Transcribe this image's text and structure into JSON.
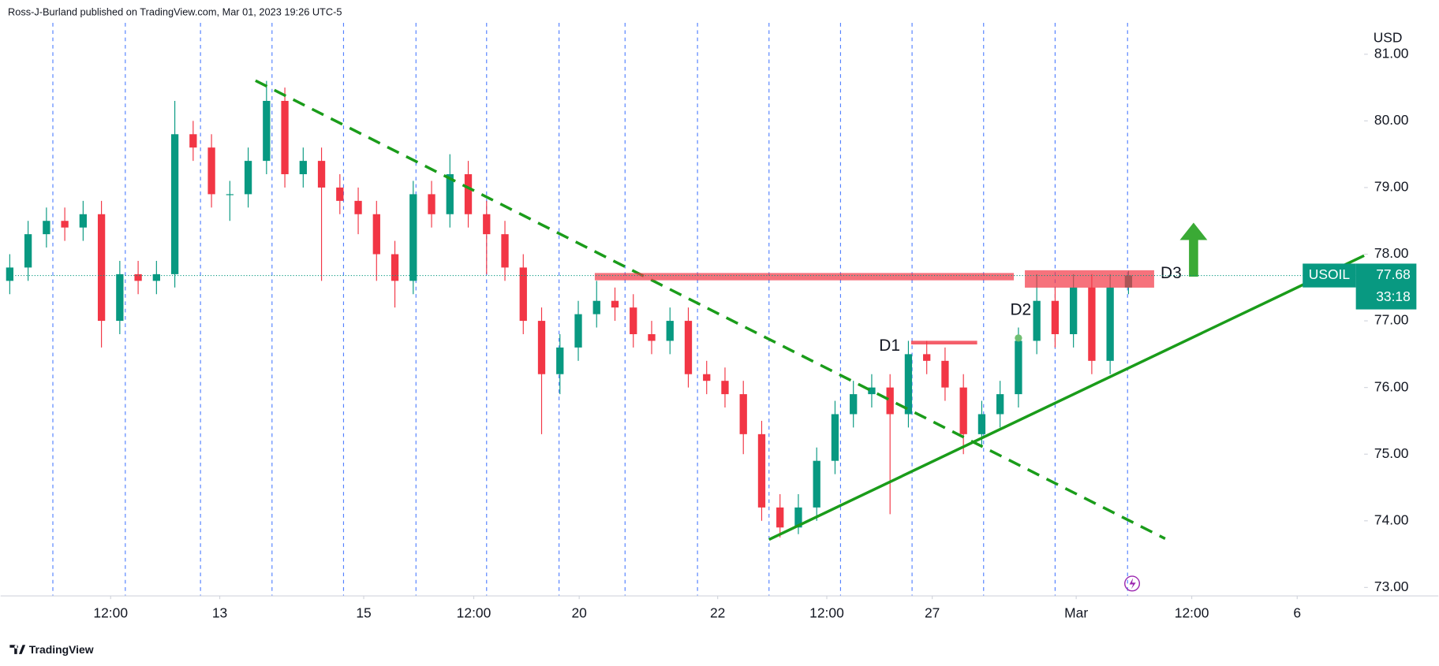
{
  "chart_data": {
    "type": "candlestick",
    "header": "Ross-J-Burland published on TradingView.com, Mar 01, 2023 19:26 UTC-5",
    "currency": "USD",
    "brand": "TradingView",
    "symbol": "USOIL",
    "last_price": 77.68,
    "countdown": "33:18",
    "annotations": [
      "D1",
      "D2",
      "D3"
    ],
    "up_color": "#089981",
    "down_color": "#f23645",
    "x": [
      0,
      5,
      10,
      15,
      20,
      25,
      30,
      35,
      40,
      45,
      50,
      55,
      60,
      65,
      70,
      75,
      80,
      85,
      90,
      95,
      100,
      105,
      110,
      115,
      120,
      125,
      130,
      135,
      140,
      145,
      150,
      155,
      160,
      165,
      170,
      175,
      180,
      185,
      190,
      195,
      200,
      205,
      210,
      215,
      220,
      225,
      230,
      235,
      240,
      245,
      250,
      255,
      260,
      265,
      270,
      275,
      280,
      285,
      290,
      295,
      300,
      305
    ],
    "open": [
      77.6,
      77.8,
      78.3,
      78.5,
      78.4,
      78.6,
      77.0,
      77.7,
      77.6,
      77.7,
      79.8,
      79.6,
      78.9,
      78.9,
      79.4,
      80.3,
      79.2,
      79.4,
      79.0,
      78.8,
      78.6,
      78.0,
      77.6,
      78.9,
      78.6,
      79.2,
      78.6,
      78.3,
      77.8,
      77.0,
      76.2,
      76.6,
      77.1,
      77.3,
      77.2,
      76.8,
      76.7,
      77.0,
      76.2,
      76.1,
      75.9,
      75.3,
      74.2,
      73.9,
      74.2,
      74.9,
      75.6,
      75.9,
      76.0,
      75.6,
      76.5,
      76.4,
      76.0,
      75.3,
      75.6,
      75.9,
      76.7,
      77.3,
      76.8,
      77.5,
      76.4,
      77.5
    ],
    "high": [
      78.0,
      78.5,
      78.7,
      78.7,
      78.8,
      78.8,
      77.9,
      77.9,
      77.9,
      80.3,
      80.0,
      79.8,
      79.1,
      79.6,
      80.6,
      80.5,
      79.6,
      79.6,
      79.2,
      79.0,
      78.8,
      78.2,
      79.1,
      79.1,
      79.5,
      79.4,
      78.8,
      78.5,
      78.0,
      77.2,
      76.8,
      77.3,
      77.6,
      77.5,
      77.4,
      77.0,
      77.2,
      77.2,
      76.4,
      76.3,
      76.1,
      75.5,
      74.4,
      74.4,
      75.1,
      75.8,
      76.1,
      76.2,
      76.2,
      76.7,
      76.7,
      76.6,
      76.2,
      75.8,
      76.1,
      76.9,
      77.7,
      77.5,
      77.7,
      77.7,
      77.7,
      77.75
    ],
    "low": [
      77.4,
      77.6,
      78.1,
      78.2,
      78.2,
      76.6,
      76.8,
      77.4,
      77.4,
      77.5,
      79.4,
      78.7,
      78.5,
      78.7,
      79.2,
      79.0,
      79.0,
      77.6,
      78.6,
      78.3,
      77.6,
      77.2,
      77.4,
      78.4,
      78.4,
      78.4,
      77.7,
      77.6,
      76.8,
      75.3,
      75.9,
      76.4,
      76.9,
      77.0,
      76.6,
      76.5,
      76.5,
      76.0,
      75.9,
      75.7,
      75.0,
      74.0,
      73.75,
      73.8,
      74.0,
      74.7,
      75.4,
      75.7,
      74.1,
      75.4,
      76.2,
      75.8,
      75.0,
      75.1,
      75.4,
      75.7,
      76.5,
      76.6,
      76.6,
      76.2,
      76.2,
      77.4
    ],
    "close": [
      77.8,
      78.3,
      78.5,
      78.4,
      78.6,
      77.0,
      77.7,
      77.6,
      77.7,
      79.8,
      79.6,
      78.9,
      78.9,
      79.4,
      80.3,
      79.2,
      79.4,
      79.0,
      78.8,
      78.6,
      78.0,
      77.6,
      78.9,
      78.6,
      79.2,
      78.6,
      78.3,
      77.8,
      77.0,
      76.2,
      76.6,
      77.1,
      77.3,
      77.2,
      76.8,
      76.7,
      77.0,
      76.2,
      76.1,
      75.9,
      75.3,
      74.2,
      73.9,
      74.2,
      74.9,
      75.6,
      75.9,
      76.0,
      75.6,
      76.5,
      76.4,
      76.0,
      75.3,
      75.6,
      75.9,
      76.7,
      77.3,
      76.8,
      77.5,
      76.4,
      77.5,
      77.68
    ],
    "xlim": [
      0,
      369.25
    ],
    "xticks": [
      {
        "value": 27.5,
        "label": "12:00"
      },
      {
        "value": 57.25,
        "label": "13"
      },
      {
        "value": 96.5,
        "label": "15"
      },
      {
        "value": 126.5,
        "label": "12:00"
      },
      {
        "value": 155.25,
        "label": "20"
      },
      {
        "value": 193,
        "label": "22"
      },
      {
        "value": 222.75,
        "label": "12:00"
      },
      {
        "value": 251.5,
        "label": "27"
      },
      {
        "value": 290.75,
        "label": "Mar"
      },
      {
        "value": 322.25,
        "label": "12:00"
      },
      {
        "value": 351,
        "label": "6"
      }
    ],
    "ylim": [
      72.88,
      81.47
    ],
    "yticks": [
      {
        "value": 73,
        "label": "73.00"
      },
      {
        "value": 74,
        "label": "74.00"
      },
      {
        "value": 75,
        "label": "75.00"
      },
      {
        "value": 76,
        "label": "76.00"
      },
      {
        "value": 77,
        "label": "77.00"
      },
      {
        "value": 78,
        "label": "78.00"
      },
      {
        "value": 79,
        "label": "79.00"
      },
      {
        "value": 80,
        "label": "80.00"
      },
      {
        "value": 81,
        "label": "81.00"
      }
    ]
  }
}
